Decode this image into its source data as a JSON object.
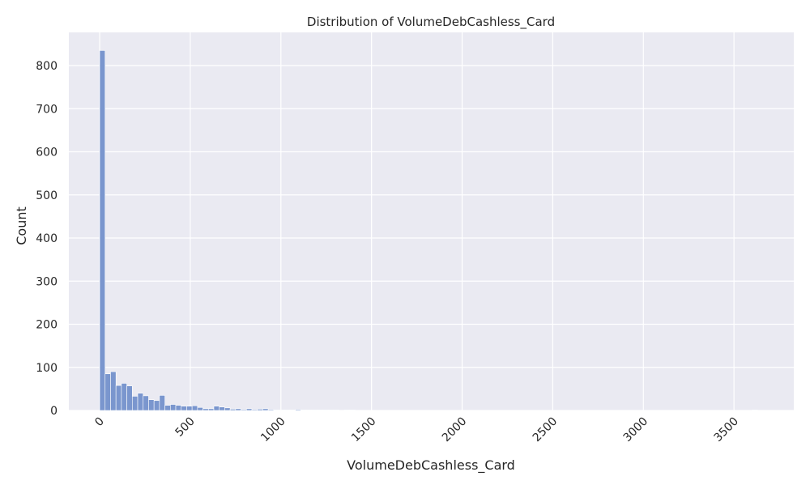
{
  "chart_data": {
    "type": "bar",
    "title": "Distribution of VolumeDebCashless_Card",
    "xlabel": "VolumeDebCashless_Card",
    "ylabel": "Count",
    "bin_width": 30,
    "bin_start": 0,
    "counts": [
      835,
      85,
      90,
      58,
      63,
      57,
      33,
      40,
      34,
      25,
      23,
      35,
      12,
      14,
      12,
      10,
      10,
      11,
      7,
      4,
      4,
      10,
      8,
      6,
      3,
      4,
      2,
      4,
      2,
      3,
      4,
      2,
      1,
      1,
      1,
      1,
      2,
      1,
      1,
      1,
      1,
      1,
      1,
      1,
      0,
      1,
      1,
      0,
      0,
      0,
      0,
      0,
      0,
      0,
      0,
      0,
      0,
      0,
      0,
      0,
      0,
      0,
      0,
      0,
      0,
      0,
      0,
      0,
      0,
      0,
      0,
      0,
      0,
      0,
      0,
      0,
      0,
      0,
      0,
      0,
      0,
      0,
      0,
      0,
      0,
      0,
      0,
      0,
      0,
      0,
      0,
      0,
      0,
      0,
      0,
      0,
      0,
      0,
      0,
      0,
      0,
      0,
      0,
      0,
      0,
      0,
      0,
      0,
      0,
      0,
      0,
      0,
      0,
      0,
      0,
      0,
      0,
      0,
      0,
      0,
      1
    ],
    "xlim": [
      -170,
      3830
    ],
    "ylim": [
      0,
      877
    ],
    "xticks": [
      0,
      500,
      1000,
      1500,
      2000,
      2500,
      3000,
      3500
    ],
    "yticks": [
      0,
      100,
      200,
      300,
      400,
      500,
      600,
      700,
      800
    ],
    "grid": true,
    "bar_color": "#7A96CE",
    "background_color": "#EAEAF2"
  }
}
